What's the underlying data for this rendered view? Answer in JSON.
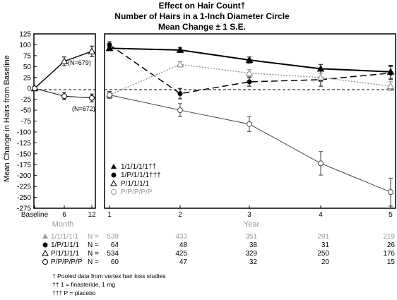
{
  "chart_data": {
    "type": "line",
    "title": "Effect on Hair Count†",
    "subtitle_lines": [
      "Number of Hairs in a 1-Inch Diameter Circle",
      "Mean Change ± 1 S.E."
    ],
    "ylabel": "Mean Change in Hairs from Baseline",
    "ylim": [
      -275,
      125
    ],
    "yticks": [
      125,
      100,
      75,
      50,
      25,
      0,
      -25,
      -50,
      -75,
      -100,
      -125,
      -150,
      -175,
      -200,
      -225,
      -250,
      -275
    ],
    "grid": false,
    "legend_position": "bottom-left of right panel",
    "panels": [
      {
        "xlabel": "Month",
        "categories": [
          "Baseline",
          "6",
          "12"
        ],
        "series": [
          {
            "name": "1/1/1/1/1††",
            "marker": "triangle",
            "values": [
              0,
              62,
              85
            ],
            "error": [
              0,
              10,
              12
            ]
          },
          {
            "name": "P/P/P/P/P",
            "marker": "open-circle",
            "values": [
              0,
              -18,
              -22
            ],
            "error": [
              0,
              8,
              9
            ]
          }
        ],
        "annotations": [
          "(N=679)",
          "(N=672)"
        ]
      },
      {
        "xlabel": "Year",
        "categories": [
          "1",
          "2",
          "3",
          "4",
          "5"
        ],
        "series": [
          {
            "name": "1/1/1/1/1††",
            "marker": "filled-triangle",
            "line": "solid",
            "values": [
              92,
              88,
              65,
              45,
              38
            ],
            "error": [
              5,
              5,
              7,
              10,
              15
            ]
          },
          {
            "name": "1/P/1/1/1†††",
            "marker": "filled-circle",
            "line": "dashed",
            "values": [
              100,
              -12,
              15,
              20,
              35
            ],
            "error": [
              7,
              12,
              10,
              15,
              15
            ]
          },
          {
            "name": "P/1/1/1/1",
            "marker": "open-triangle",
            "line": "dotted",
            "values": [
              -15,
              55,
              35,
              25,
              5
            ],
            "error": [
              7,
              6,
              8,
              10,
              10
            ]
          },
          {
            "name": "P/P/P/P/P",
            "marker": "open-circle",
            "line": "thin-solid",
            "values": [
              -15,
              -50,
              -82,
              -172,
              -238
            ],
            "error": [
              8,
              15,
              17,
              27,
              32
            ]
          }
        ]
      }
    ],
    "n_table": {
      "header_label": "N",
      "rows": [
        {
          "name": "1/1/1/1/1",
          "n_label": "N =",
          "values": [
            "539",
            "433",
            "351",
            "291",
            "219"
          ]
        },
        {
          "name": "1/P/1/1/1",
          "n_label": "N =",
          "values": [
            "64",
            "48",
            "38",
            "31",
            "26"
          ]
        },
        {
          "name": "P/1/1/1/1",
          "n_label": "N =",
          "values": [
            "534",
            "425",
            "329",
            "250",
            "176"
          ]
        },
        {
          "name": "P/P/P/P/P",
          "n_label": "N =",
          "values": [
            "60",
            "47",
            "32",
            "20",
            "15"
          ]
        }
      ]
    },
    "footnotes": [
      "† Pooled data from vertex hair loss studies",
      "†† 1 = finasteride, 1 mg",
      "††† P = placebo"
    ]
  }
}
